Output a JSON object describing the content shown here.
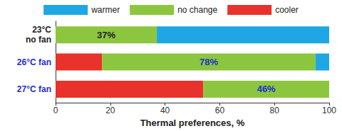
{
  "chart_data": {
    "type": "bar",
    "orientation": "horizontal",
    "stacked": true,
    "x_label": "Thermal preferences, %",
    "categories": [
      "23°C\nno fan",
      "26°C fan",
      "27°C fan"
    ],
    "series": [
      {
        "name": "warmer",
        "color": "#1ea7e4",
        "values": [
          63,
          5,
          0
        ]
      },
      {
        "name": "no change",
        "color": "#8cc63e",
        "values": [
          37,
          78,
          46
        ],
        "data_labels": true,
        "value_labels": [
          "37%",
          "78%",
          "46%"
        ]
      },
      {
        "name": "cooler",
        "color": "#e8322b",
        "values": [
          0,
          17,
          54
        ]
      }
    ],
    "xlim": [
      0,
      100
    ],
    "xticks": [
      0,
      20,
      40,
      60,
      80,
      100
    ],
    "grid": false,
    "legend": "top"
  }
}
